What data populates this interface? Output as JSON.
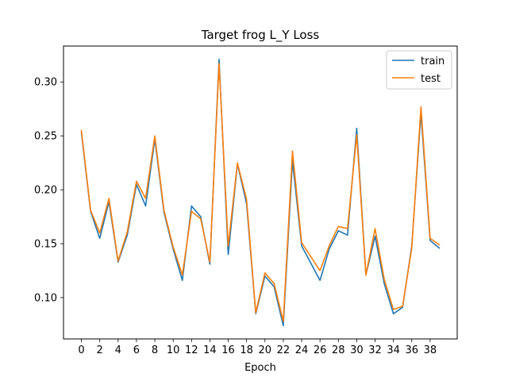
{
  "chart_data": {
    "type": "line",
    "title": "Target frog L_Y Loss",
    "xlabel": "Epoch",
    "ylabel": "",
    "x": [
      0,
      1,
      2,
      3,
      4,
      5,
      6,
      7,
      8,
      9,
      10,
      11,
      12,
      13,
      14,
      15,
      16,
      17,
      18,
      19,
      20,
      21,
      22,
      23,
      24,
      25,
      26,
      27,
      28,
      29,
      30,
      31,
      32,
      33,
      34,
      35,
      36,
      37,
      38,
      39
    ],
    "xticks": [
      0,
      2,
      4,
      6,
      8,
      10,
      12,
      14,
      16,
      18,
      20,
      22,
      24,
      26,
      28,
      30,
      32,
      34,
      36,
      38
    ],
    "xlim": [
      -1.95,
      40.95
    ],
    "yticks": [
      0.1,
      0.15,
      0.2,
      0.25,
      0.3
    ],
    "ytick_labels": [
      "0.10",
      "0.15",
      "0.20",
      "0.25",
      "0.30"
    ],
    "ylim": [
      0.0617,
      0.3333
    ],
    "grid": false,
    "legend": "top-right",
    "series": [
      {
        "name": "train",
        "color": "#1f77b4",
        "values": [
          0.253,
          0.18,
          0.155,
          0.189,
          0.133,
          0.158,
          0.205,
          0.185,
          0.247,
          0.179,
          0.145,
          0.116,
          0.185,
          0.175,
          0.131,
          0.321,
          0.14,
          0.224,
          0.187,
          0.085,
          0.12,
          0.11,
          0.074,
          0.227,
          0.148,
          0.132,
          0.116,
          0.145,
          0.162,
          0.158,
          0.257,
          0.121,
          0.157,
          0.113,
          0.085,
          0.091,
          0.148,
          0.271,
          0.153,
          0.146
        ]
      },
      {
        "name": "test",
        "color": "#ff7f0e",
        "values": [
          0.255,
          0.181,
          0.16,
          0.192,
          0.134,
          0.161,
          0.208,
          0.192,
          0.25,
          0.181,
          0.147,
          0.121,
          0.18,
          0.173,
          0.133,
          0.317,
          0.148,
          0.225,
          0.191,
          0.086,
          0.123,
          0.113,
          0.078,
          0.236,
          0.151,
          0.138,
          0.125,
          0.148,
          0.166,
          0.164,
          0.251,
          0.121,
          0.164,
          0.117,
          0.089,
          0.092,
          0.146,
          0.277,
          0.155,
          0.149
        ]
      }
    ]
  }
}
